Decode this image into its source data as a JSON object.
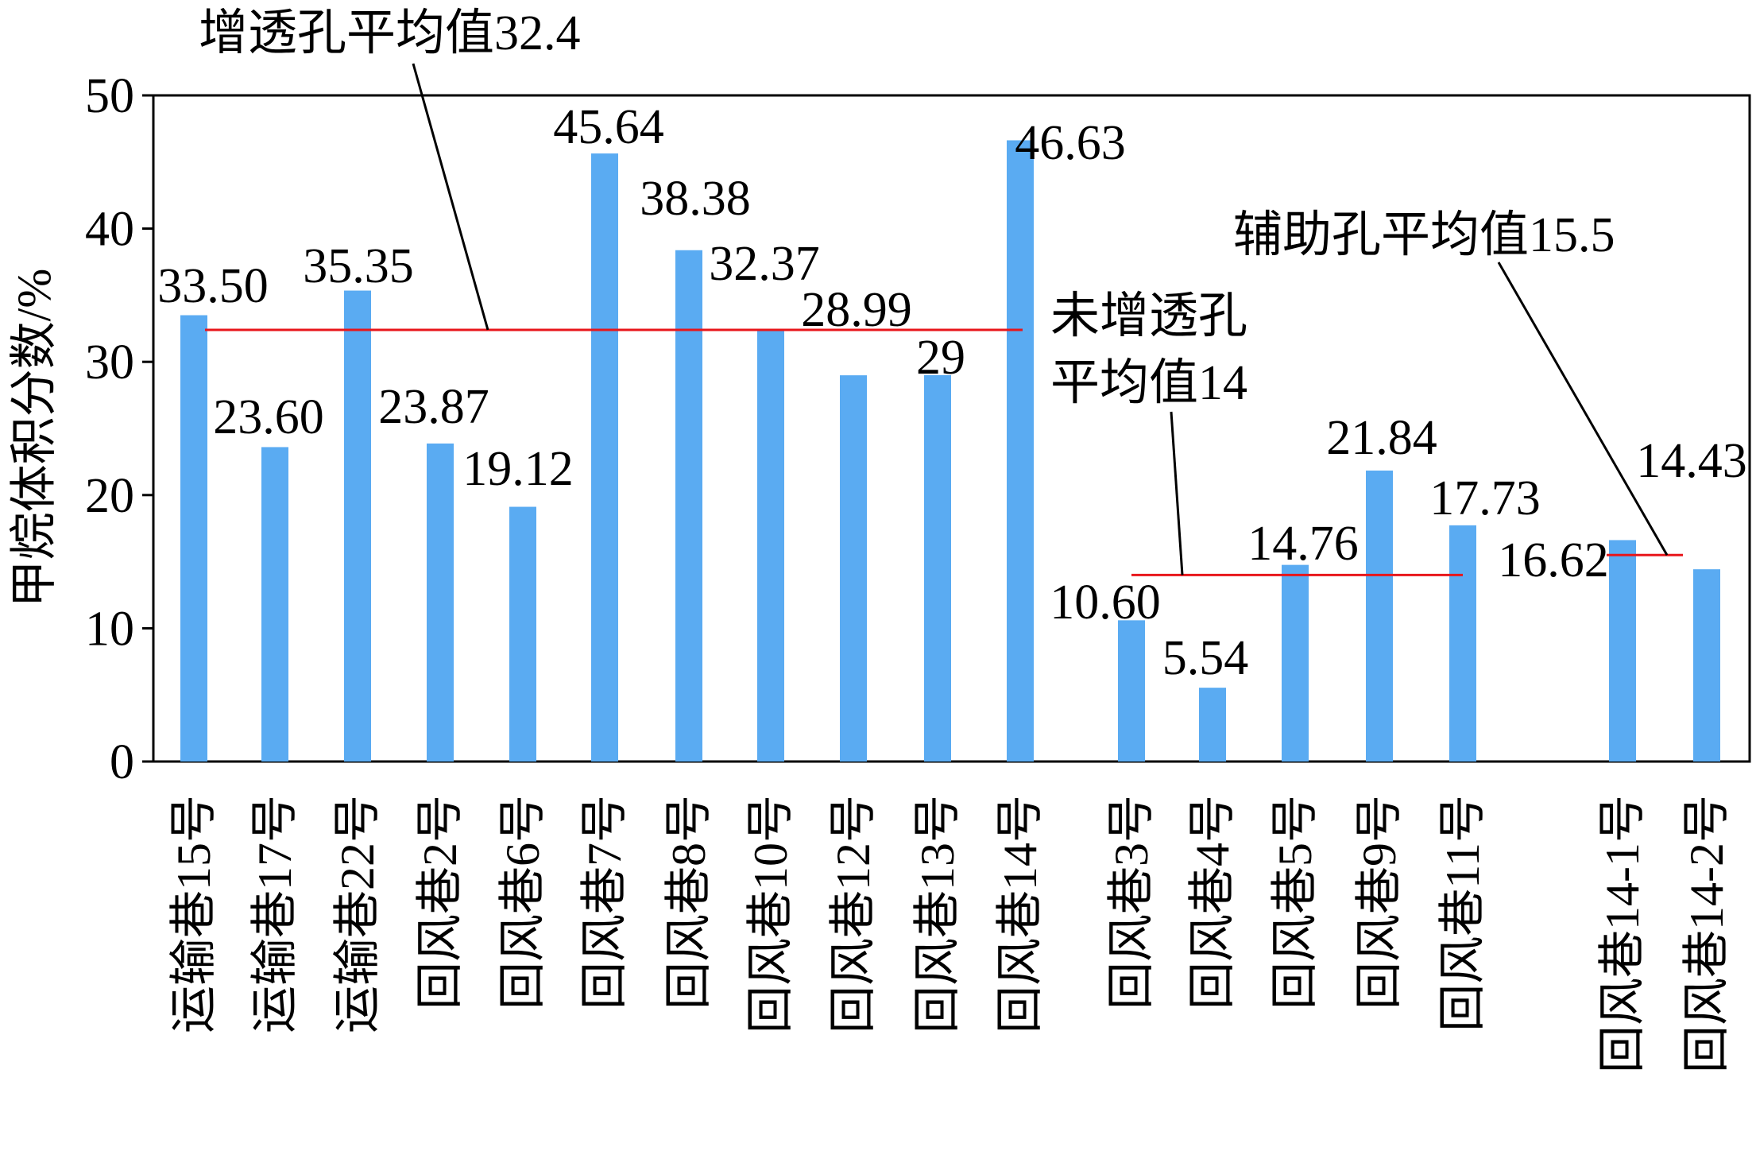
{
  "chart_data": {
    "type": "bar",
    "ylabel": "甲烷体积分数/%",
    "ylim": [
      0,
      50
    ],
    "yticks": [
      0,
      10,
      20,
      30,
      40,
      50
    ],
    "grid": false,
    "bar_color": "#5aabf2",
    "avg_line_color": "#e8161b",
    "groups": [
      {
        "name": "增透孔",
        "categories": [
          "运输巷15号",
          "运输巷17号",
          "运输巷22号",
          "回风巷2号",
          "回风巷6号",
          "回风巷7号",
          "回风巷8号",
          "回风巷10号",
          "回风巷12号",
          "回风巷13号",
          "回风巷14号"
        ],
        "values": [
          33.5,
          23.6,
          35.35,
          23.87,
          19.12,
          45.64,
          38.38,
          32.37,
          28.99,
          29,
          46.63
        ],
        "value_labels": [
          "33.50",
          "23.60",
          "35.35",
          "23.87",
          "19.12",
          "45.64",
          "38.38",
          "32.37",
          "28.99",
          "29",
          "46.63"
        ]
      },
      {
        "name": "未增透孔",
        "categories": [
          "回风巷3号",
          "回风巷4号",
          "回风巷5号",
          "回风巷9号",
          "回风巷11号"
        ],
        "values": [
          10.6,
          5.54,
          14.76,
          21.84,
          17.73
        ],
        "value_labels": [
          "10.60",
          "5.54",
          "14.76",
          "21.84",
          "17.73"
        ]
      },
      {
        "name": "辅助孔",
        "categories": [
          "回风巷14-1号",
          "回风巷14-2号"
        ],
        "values": [
          16.62,
          14.43
        ],
        "value_labels": [
          "16.62",
          "14.43"
        ]
      }
    ],
    "averages": [
      {
        "label": "增透孔平均值32.4",
        "value": 32.4
      },
      {
        "label": "未增透孔",
        "label2": "平均值14",
        "value": 14
      },
      {
        "label": "辅助孔平均值15.5",
        "value": 15.5
      }
    ]
  }
}
